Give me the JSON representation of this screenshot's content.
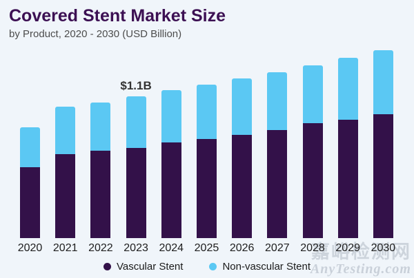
{
  "header": {
    "title": "Covered Stent Market Size",
    "subtitle": "by Product, 2020 - 2030 (USD Billion)"
  },
  "chart_data": {
    "type": "bar",
    "stacked": true,
    "title": "Covered Stent Market Size",
    "subtitle": "by Product, 2020 - 2030 (USD Billion)",
    "unit": "USD Billion",
    "categories": [
      "2020",
      "2021",
      "2022",
      "2023",
      "2024",
      "2025",
      "2026",
      "2027",
      "2028",
      "2029",
      "2030"
    ],
    "series": [
      {
        "name": "Vascular Stent",
        "color": "#331149",
        "values": [
          0.55,
          0.65,
          0.68,
          0.7,
          0.74,
          0.77,
          0.8,
          0.84,
          0.89,
          0.92,
          0.96
        ]
      },
      {
        "name": "Non-vascular Stent",
        "color": "#5bc8f3",
        "values": [
          0.31,
          0.37,
          0.37,
          0.4,
          0.41,
          0.42,
          0.44,
          0.45,
          0.45,
          0.48,
          0.5
        ]
      }
    ],
    "totals": [
      0.86,
      1.02,
      1.05,
      1.1,
      1.15,
      1.19,
      1.24,
      1.29,
      1.34,
      1.4,
      1.46
    ],
    "annotations": [
      {
        "category": "2023",
        "label": "$1.1B"
      }
    ],
    "xlabel": "",
    "ylabel": "",
    "ylim": [
      0,
      1.6
    ],
    "grid": false,
    "axes_visible": false,
    "legend_position": "bottom"
  },
  "legend": {
    "items": [
      {
        "label": "Vascular Stent",
        "color": "#331149"
      },
      {
        "label": "Non-vascular Stent",
        "color": "#5bc8f3"
      }
    ]
  },
  "watermark": {
    "line1": "嘉峪检测网",
    "line2": "AnyTesting.com"
  },
  "colors": {
    "background": "#f0f5fa",
    "title": "#3c1053",
    "subtitle": "#4c4c4c",
    "vascular": "#331149",
    "non_vascular": "#5bc8f3",
    "annotation": "#333333",
    "watermark": "#96a0ac"
  }
}
